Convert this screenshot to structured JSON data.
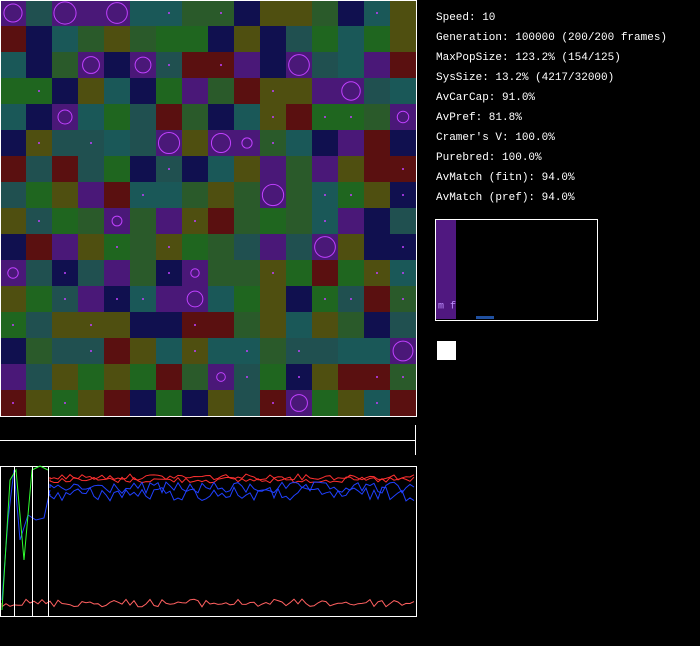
{
  "stats": [
    "Speed: 10",
    "Generation: 100000 (200/200 frames)",
    "MaxPopSize: 123.2% (154/125)",
    "SysSize: 13.2% (4217/32000)",
    "AvCarCap: 91.0%",
    "AvPref: 81.8%",
    "Cramer's V: 100.0%",
    "Purebred: 100.0%",
    "AvMatch (fitn): 94.0%",
    "AvMatch (pref): 94.0%"
  ],
  "histogram": {
    "label": "m f"
  }
}
